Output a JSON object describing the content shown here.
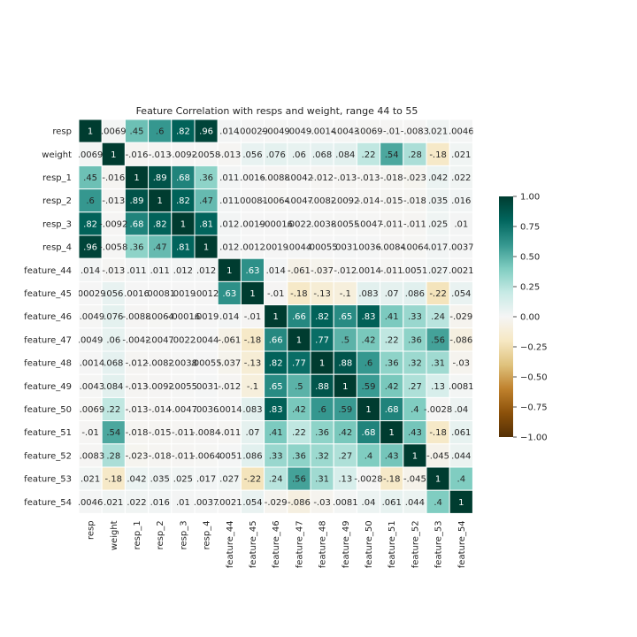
{
  "chart_data": {
    "type": "heatmap",
    "title": "Feature Correlation with resps and weight, range 44 to 55",
    "labels": [
      "resp",
      "weight",
      "resp_1",
      "resp_2",
      "resp_3",
      "resp_4",
      "feature_44",
      "feature_45",
      "feature_46",
      "feature_47",
      "feature_48",
      "feature_49",
      "feature_50",
      "feature_51",
      "feature_52",
      "feature_53",
      "feature_54"
    ],
    "matrix": [
      [
        1,
        0.0069,
        0.45,
        0.6,
        0.82,
        0.96,
        0.014,
        0.00029,
        -0.0049,
        0.0049,
        -0.0014,
        -0.0043,
        -0.0069,
        -0.01,
        -0.0083,
        0.021,
        0.0046
      ],
      [
        0.0069,
        1,
        -0.016,
        -0.013,
        -0.0092,
        -0.0058,
        -0.013,
        0.056,
        0.076,
        0.06,
        0.068,
        0.084,
        0.22,
        0.54,
        0.28,
        -0.18,
        0.021
      ],
      [
        0.45,
        -0.016,
        1,
        0.89,
        0.68,
        0.36,
        0.011,
        0.0016,
        -0.0088,
        -0.0042,
        -0.012,
        -0.013,
        -0.013,
        -0.018,
        -0.023,
        0.042,
        0.022
      ],
      [
        0.6,
        -0.013,
        0.89,
        1,
        0.82,
        0.47,
        0.011,
        0.00081,
        -0.0064,
        -0.0047,
        -0.0082,
        -0.0092,
        -0.014,
        -0.015,
        -0.018,
        0.035,
        0.016
      ],
      [
        0.82,
        -0.0092,
        0.68,
        0.82,
        1,
        0.81,
        0.012,
        0.0019,
        -0.00016,
        0.0022,
        -0.0038,
        -0.0055,
        -0.0047,
        -0.011,
        -0.011,
        0.025,
        0.01
      ],
      [
        0.96,
        -0.0058,
        0.36,
        0.47,
        0.81,
        1,
        0.012,
        0.0012,
        0.0019,
        0.0044,
        0.00055,
        0.0031,
        0.0036,
        -0.0084,
        -0.0064,
        0.017,
        0.0037
      ],
      [
        0.014,
        -0.013,
        0.011,
        0.011,
        0.012,
        0.012,
        1,
        0.63,
        0.014,
        -0.061,
        -0.037,
        -0.012,
        0.0014,
        -0.011,
        0.0051,
        0.027,
        0.0021
      ],
      [
        0.00029,
        0.056,
        0.0016,
        0.00081,
        0.0019,
        0.0012,
        0.63,
        1,
        -0.01,
        -0.18,
        -0.13,
        -0.1,
        0.083,
        0.07,
        0.086,
        -0.22,
        0.054
      ],
      [
        -0.0049,
        0.076,
        -0.0088,
        -0.0064,
        -0.00016,
        0.0019,
        0.014,
        -0.01,
        1,
        0.66,
        0.82,
        0.65,
        0.83,
        0.41,
        0.33,
        0.24,
        -0.029
      ],
      [
        0.0049,
        0.06,
        -0.0042,
        -0.0047,
        0.0022,
        0.0044,
        -0.061,
        -0.18,
        0.66,
        1,
        0.77,
        0.5,
        0.42,
        0.22,
        0.36,
        0.56,
        -0.086
      ],
      [
        -0.0014,
        0.068,
        -0.012,
        -0.0082,
        -0.0038,
        0.00055,
        -0.037,
        -0.13,
        0.82,
        0.77,
        1,
        0.88,
        0.6,
        0.36,
        0.32,
        0.31,
        -0.03
      ],
      [
        -0.0043,
        0.084,
        -0.013,
        -0.0092,
        -0.0055,
        0.0031,
        -0.012,
        -0.1,
        0.65,
        0.5,
        0.88,
        1,
        0.59,
        0.42,
        0.27,
        0.13,
        0.0081
      ],
      [
        -0.0069,
        0.22,
        -0.013,
        -0.014,
        -0.0047,
        0.0036,
        0.0014,
        0.083,
        0.83,
        0.42,
        0.6,
        0.59,
        1,
        0.68,
        0.4,
        -0.0028,
        0.04
      ],
      [
        -0.01,
        0.54,
        -0.018,
        -0.015,
        -0.011,
        -0.0084,
        -0.011,
        0.07,
        0.41,
        0.22,
        0.36,
        0.42,
        0.68,
        1,
        0.43,
        -0.18,
        0.061
      ],
      [
        -0.0083,
        0.28,
        -0.023,
        -0.018,
        -0.011,
        -0.0064,
        0.0051,
        0.086,
        0.33,
        0.36,
        0.32,
        0.27,
        0.4,
        0.43,
        1,
        -0.045,
        0.044
      ],
      [
        0.021,
        -0.18,
        0.042,
        0.035,
        0.025,
        0.017,
        0.027,
        -0.22,
        0.24,
        0.56,
        0.31,
        0.13,
        -0.0028,
        -0.18,
        -0.045,
        1,
        0.4
      ],
      [
        0.0046,
        0.021,
        0.022,
        0.016,
        0.01,
        0.0037,
        0.0021,
        0.054,
        -0.029,
        -0.086,
        -0.03,
        0.0081,
        0.04,
        0.061,
        0.044,
        0.4,
        1
      ]
    ],
    "colorbar": {
      "min": -1,
      "max": 1,
      "ticks": [
        "1.00",
        "0.75",
        "0.50",
        "0.25",
        "0.00",
        "−0.25",
        "−0.50",
        "−0.75",
        "−1.00"
      ],
      "tick_values": [
        1,
        0.75,
        0.5,
        0.25,
        0,
        -0.25,
        -0.5,
        -0.75,
        -1
      ],
      "colormap": "BrBG"
    },
    "annotations": true,
    "grid": false
  }
}
